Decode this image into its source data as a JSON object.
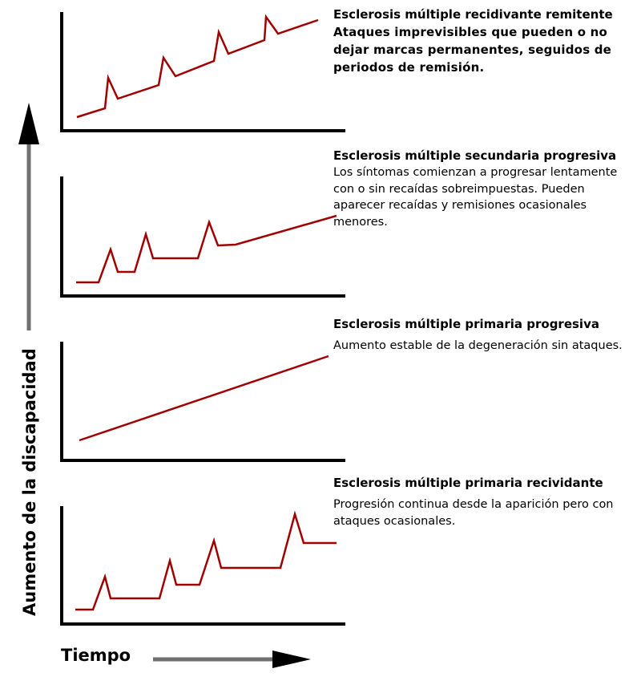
{
  "axes": {
    "y_label": "Aumento de la discapacidad",
    "x_label": "Tiempo"
  },
  "colors": {
    "curve": "#a00000",
    "axis": "#000000",
    "arrow_shaft": "#707070"
  },
  "panels": [
    {
      "title": "Esclerosis múltiple recidivante remitente",
      "description": "Ataques imprevisibles que pueden o no dejar marcas permanentes, seguidos de periodos de remisión."
    },
    {
      "title": "Esclerosis múltiple secundaria progresiva",
      "description": "Los síntomas comienzan a progresar lentamente con o sin recaídas sobreimpuestas. Pueden aparecer recaídas y remisiones ocasionales menores."
    },
    {
      "title": "Esclerosis múltiple primaria progresiva",
      "description": "Aumento estable de la degeneración sin ataques."
    },
    {
      "title": "Esclerosis múltiple primaria recividante",
      "description": "Progresión continua desde la aparición pero con ataques ocasionales."
    }
  ]
}
